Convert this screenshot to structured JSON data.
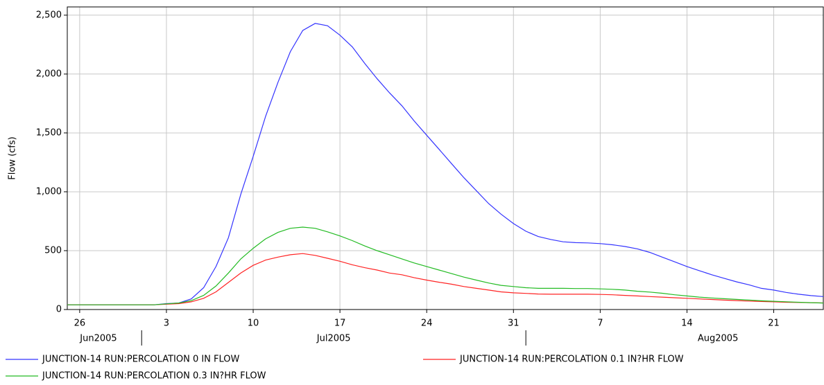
{
  "chart_data": {
    "type": "line",
    "y_label": "Flow (cfs)",
    "x": [
      "2005-06-25",
      "2005-06-26",
      "2005-06-27",
      "2005-06-28",
      "2005-06-29",
      "2005-06-30",
      "2005-07-01",
      "2005-07-02",
      "2005-07-03",
      "2005-07-04",
      "2005-07-05",
      "2005-07-06",
      "2005-07-07",
      "2005-07-08",
      "2005-07-09",
      "2005-07-10",
      "2005-07-11",
      "2005-07-12",
      "2005-07-13",
      "2005-07-14",
      "2005-07-15",
      "2005-07-16",
      "2005-07-17",
      "2005-07-18",
      "2005-07-19",
      "2005-07-20",
      "2005-07-21",
      "2005-07-22",
      "2005-07-23",
      "2005-07-24",
      "2005-07-25",
      "2005-07-26",
      "2005-07-27",
      "2005-07-28",
      "2005-07-29",
      "2005-07-30",
      "2005-07-31",
      "2005-08-01",
      "2005-08-02",
      "2005-08-03",
      "2005-08-04",
      "2005-08-05",
      "2005-08-06",
      "2005-08-07",
      "2005-08-08",
      "2005-08-09",
      "2005-08-10",
      "2005-08-11",
      "2005-08-12",
      "2005-08-13",
      "2005-08-14",
      "2005-08-15",
      "2005-08-16",
      "2005-08-17",
      "2005-08-18",
      "2005-08-19",
      "2005-08-20",
      "2005-08-21",
      "2005-08-22",
      "2005-08-23",
      "2005-08-24",
      "2005-08-25"
    ],
    "series": [
      {
        "name": "JUNCTION-14 RUN:PERCOLATION 0 IN FLOW",
        "color": "#3333ff",
        "values": [
          40,
          40,
          40,
          40,
          40,
          40,
          40,
          40,
          50,
          55,
          90,
          185,
          365,
          610,
          980,
          1300,
          1640,
          1930,
          2190,
          2370,
          2430,
          2410,
          2330,
          2230,
          2090,
          1960,
          1840,
          1730,
          1600,
          1480,
          1360,
          1240,
          1120,
          1010,
          900,
          810,
          730,
          665,
          620,
          595,
          575,
          568,
          566,
          560,
          550,
          535,
          515,
          485,
          445,
          405,
          365,
          330,
          295,
          265,
          235,
          210,
          180,
          165,
          145,
          130,
          118,
          110
        ]
      },
      {
        "name": "JUNCTION-14 RUN:PERCOLATION 0.1 IN?HR FLOW",
        "color": "#ff2222",
        "values": [
          40,
          40,
          40,
          40,
          40,
          40,
          40,
          40,
          45,
          50,
          65,
          95,
          150,
          230,
          310,
          375,
          420,
          445,
          465,
          475,
          460,
          435,
          410,
          380,
          355,
          335,
          310,
          295,
          270,
          250,
          232,
          215,
          195,
          180,
          165,
          150,
          142,
          137,
          132,
          130,
          130,
          130,
          130,
          128,
          125,
          120,
          115,
          110,
          105,
          100,
          95,
          90,
          85,
          80,
          76,
          72,
          68,
          65,
          62,
          60,
          58,
          56
        ]
      },
      {
        "name": "JUNCTION-14 RUN:PERCOLATION 0.3 IN?HR FLOW",
        "color": "#22bb22",
        "values": [
          40,
          40,
          40,
          40,
          40,
          40,
          40,
          40,
          48,
          55,
          75,
          120,
          200,
          310,
          430,
          520,
          600,
          655,
          690,
          700,
          690,
          660,
          625,
          585,
          540,
          500,
          465,
          430,
          395,
          365,
          335,
          305,
          275,
          250,
          225,
          205,
          195,
          185,
          180,
          180,
          180,
          178,
          178,
          175,
          172,
          165,
          155,
          148,
          138,
          125,
          115,
          105,
          98,
          92,
          86,
          80,
          74,
          70,
          66,
          62,
          58,
          55
        ]
      }
    ],
    "xlim": [
      "2005-06-25",
      "2005-08-25"
    ],
    "xticks": [
      {
        "value": "2005-06-26",
        "label": "26"
      },
      {
        "value": "2005-07-03",
        "label": "3"
      },
      {
        "value": "2005-07-10",
        "label": "10"
      },
      {
        "value": "2005-07-17",
        "label": "17"
      },
      {
        "value": "2005-07-24",
        "label": "24"
      },
      {
        "value": "2005-07-31",
        "label": "31"
      },
      {
        "value": "2005-08-07",
        "label": "7"
      },
      {
        "value": "2005-08-14",
        "label": "14"
      },
      {
        "value": "2005-08-21",
        "label": "21"
      }
    ],
    "months": [
      {
        "value": "2005-06",
        "label": "Jun2005"
      },
      {
        "value": "2005-07",
        "label": "Jul2005"
      },
      {
        "value": "2005-08",
        "label": "Aug2005"
      }
    ],
    "ylim": [
      0,
      2570
    ],
    "yticks": [
      0,
      {
        "value": 500,
        "label": "500"
      },
      {
        "value": 1000,
        "label": "1,000"
      },
      {
        "value": 1500,
        "label": "1,500"
      },
      {
        "value": 2000,
        "label": "2,000"
      },
      {
        "value": 2500,
        "label": "2,500"
      }
    ],
    "grid": true
  }
}
